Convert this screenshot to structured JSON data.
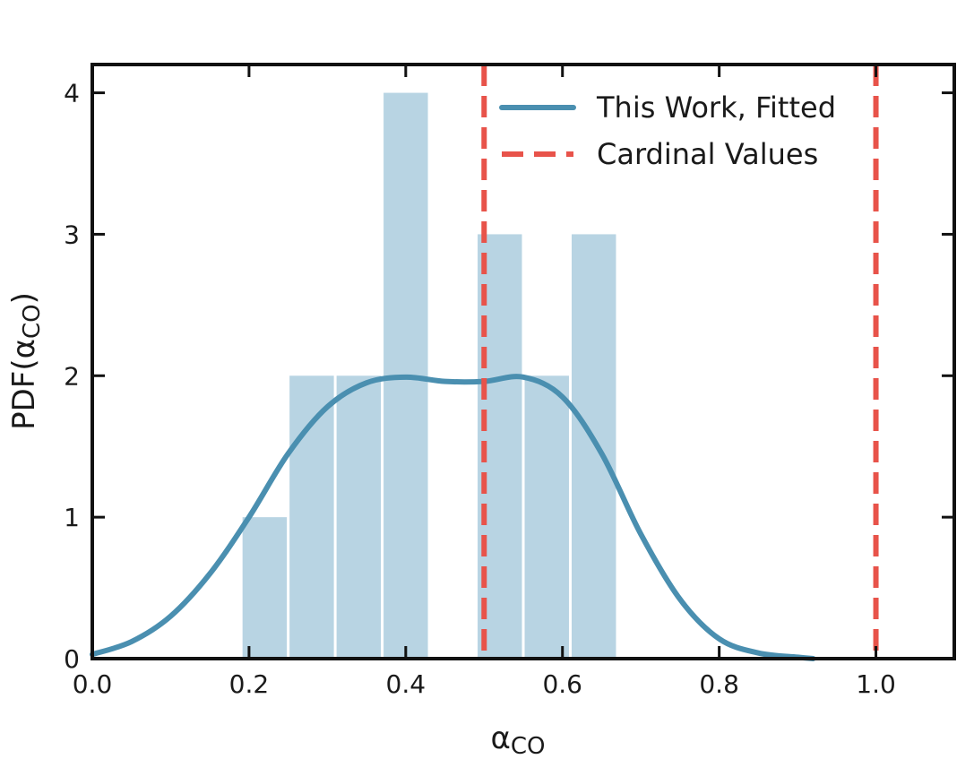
{
  "chart_data": {
    "type": "bar",
    "xlabel": "α",
    "xlabel_sub": "CO",
    "ylabel": "PDF(α",
    "ylabel_sub": "CO",
    "ylabel_close": ")",
    "xlim": [
      0.0,
      1.1
    ],
    "ylim": [
      0,
      4.2
    ],
    "xticks": [
      0.0,
      0.2,
      0.4,
      0.6,
      0.8,
      1.0
    ],
    "xtick_labels": [
      "0.0",
      "0.2",
      "0.4",
      "0.6",
      "0.8",
      "1.0"
    ],
    "yticks": [
      0,
      1,
      2,
      3,
      4
    ],
    "ytick_labels": [
      "0",
      "1",
      "2",
      "3",
      "4"
    ],
    "grid": false,
    "legend_position": "top-right",
    "histogram": {
      "color": "#b8d4e3",
      "bins": [
        {
          "left": 0.19,
          "right": 0.25,
          "value": 1
        },
        {
          "left": 0.25,
          "right": 0.31,
          "value": 2
        },
        {
          "left": 0.31,
          "right": 0.37,
          "value": 2
        },
        {
          "left": 0.37,
          "right": 0.43,
          "value": 4
        },
        {
          "left": 0.49,
          "right": 0.55,
          "value": 3
        },
        {
          "left": 0.55,
          "right": 0.61,
          "value": 2
        },
        {
          "left": 0.61,
          "right": 0.67,
          "value": 3
        }
      ]
    },
    "series": [
      {
        "name": "This Work, Fitted",
        "color": "#4a8fb0",
        "style": "solid",
        "x": [
          0.0,
          0.05,
          0.1,
          0.15,
          0.2,
          0.25,
          0.3,
          0.35,
          0.4,
          0.45,
          0.5,
          0.55,
          0.6,
          0.65,
          0.7,
          0.75,
          0.8,
          0.85,
          0.9,
          0.92
        ],
        "y": [
          0.03,
          0.12,
          0.3,
          0.6,
          1.0,
          1.45,
          1.78,
          1.95,
          1.99,
          1.96,
          1.96,
          1.99,
          1.85,
          1.45,
          0.88,
          0.42,
          0.14,
          0.04,
          0.01,
          0.0
        ]
      },
      {
        "name": "Cardinal Values",
        "color": "#e8534a",
        "style": "dashed",
        "vlines": [
          0.5,
          1.0
        ]
      }
    ]
  }
}
